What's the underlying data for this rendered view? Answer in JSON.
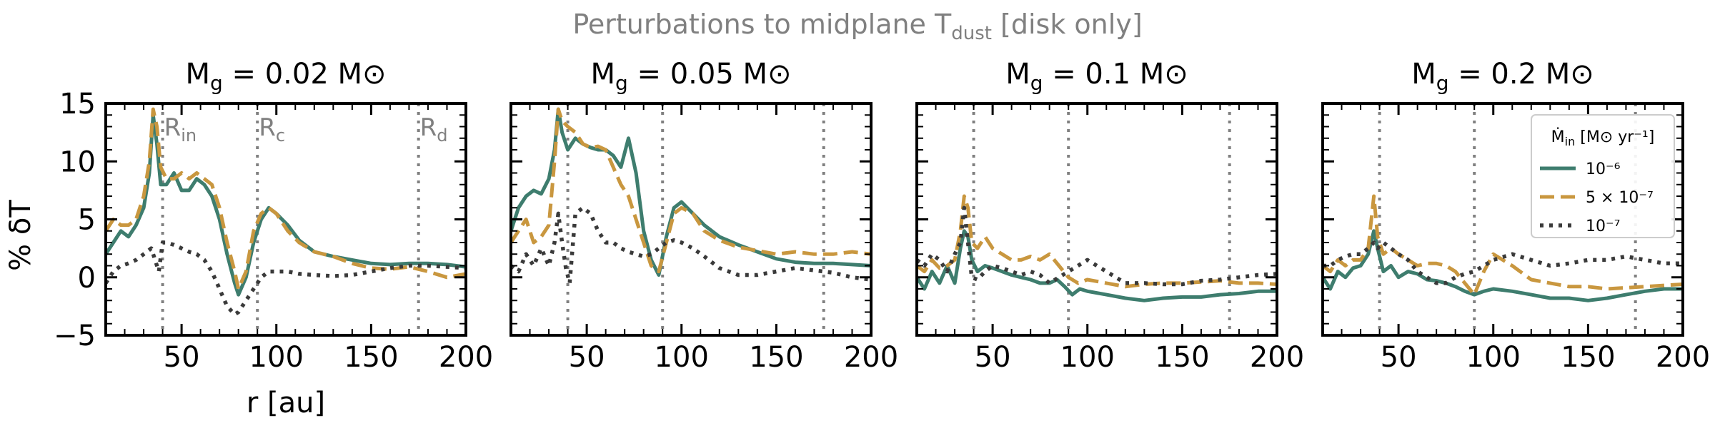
{
  "suptitle_main": "Perturbations to midplane T",
  "suptitle_sub": "dust",
  "suptitle_tail": " [disk only]",
  "ylabel": "% δT",
  "xlabel": "r [au]",
  "colors": {
    "teal": "#3e7d6e",
    "gold": "#c9973f",
    "dark": "#3a3a3a",
    "grey": "#808080"
  },
  "reference_lines": {
    "values": [
      40,
      90,
      175
    ],
    "labels": [
      {
        "main": "R",
        "sub": "in"
      },
      {
        "main": "R",
        "sub": "c"
      },
      {
        "main": "R",
        "sub": "d"
      }
    ]
  },
  "legend": {
    "title_main": "Ṁ",
    "title_sub": "in",
    "title_tail": " [M⊙ yr⁻¹]",
    "placement": "upper-right of last panel",
    "entries": [
      "10⁻⁶",
      "5 × 10⁻⁷",
      "10⁻⁷"
    ]
  },
  "chart_data": [
    {
      "type": "line",
      "title": "M_g = 0.02 M⊙",
      "title_main": "M",
      "title_sub": "g",
      "title_tail": " = 0.02 M⊙",
      "xlim": [
        10,
        200
      ],
      "ylim": [
        -5,
        15
      ],
      "xticks": [
        50,
        100,
        150,
        200
      ],
      "yticks": [
        -5,
        0,
        5,
        10,
        15
      ],
      "series": [
        {
          "style": "solid",
          "color": "teal",
          "x": [
            10,
            14,
            18,
            22,
            26,
            30,
            33,
            35,
            37,
            39,
            42,
            46,
            50,
            54,
            58,
            62,
            66,
            70,
            74,
            78,
            80,
            84,
            88,
            92,
            96,
            100,
            106,
            112,
            120,
            130,
            140,
            150,
            160,
            170,
            180,
            190,
            200
          ],
          "y": [
            2,
            3,
            4,
            3.5,
            4.5,
            6,
            9,
            14,
            11.5,
            8,
            8,
            9,
            7.5,
            7.5,
            8.5,
            8,
            7,
            5,
            2,
            -0.5,
            -1.5,
            0,
            3,
            5,
            6,
            5.5,
            4.5,
            3.2,
            2.2,
            1.8,
            1.5,
            1.2,
            1.1,
            1.2,
            1.2,
            1.1,
            0.9
          ]
        },
        {
          "style": "dashed",
          "color": "gold",
          "x": [
            10,
            14,
            18,
            22,
            26,
            30,
            33,
            35,
            37,
            39,
            42,
            46,
            50,
            54,
            58,
            62,
            66,
            70,
            74,
            78,
            80,
            84,
            88,
            92,
            96,
            100,
            106,
            112,
            120,
            130,
            140,
            150,
            160,
            170,
            180,
            190,
            200
          ],
          "y": [
            4,
            5,
            4.5,
            4.5,
            5,
            7,
            10,
            14.5,
            13,
            9.5,
            8.5,
            8.5,
            9,
            8.5,
            9,
            8.5,
            8,
            6,
            3,
            0.5,
            -1,
            0.5,
            4,
            5.5,
            6,
            5.5,
            4,
            3,
            2.2,
            1.8,
            1.2,
            0.8,
            0.7,
            0.9,
            0.5,
            0,
            0.3
          ]
        },
        {
          "style": "dotted",
          "color": "dark",
          "x": [
            10,
            14,
            18,
            22,
            26,
            30,
            34,
            36,
            38,
            40,
            42,
            46,
            50,
            54,
            58,
            62,
            66,
            70,
            74,
            78,
            80,
            84,
            88,
            92,
            96,
            100,
            106,
            112,
            120,
            130,
            140,
            150,
            160,
            170,
            180,
            190,
            200
          ],
          "y": [
            -0.5,
            0.5,
            1,
            1.2,
            1.5,
            2,
            2.5,
            1.5,
            0.5,
            3,
            3,
            2.8,
            2.5,
            2.2,
            2,
            1.5,
            0.5,
            -1,
            -2.5,
            -3.2,
            -3,
            -2,
            -1,
            0,
            0.5,
            0.5,
            0.5,
            0.3,
            0.2,
            0.1,
            0.2,
            0.5,
            0.8,
            1,
            1,
            0.9,
            0.8
          ]
        }
      ]
    },
    {
      "type": "line",
      "title": "M_g = 0.05 M⊙",
      "title_main": "M",
      "title_sub": "g",
      "title_tail": " = 0.05 M⊙",
      "xlim": [
        10,
        200
      ],
      "ylim": [
        -5,
        15
      ],
      "xticks": [
        50,
        100,
        150,
        200
      ],
      "yticks": [
        -5,
        0,
        5,
        10,
        15
      ],
      "series": [
        {
          "style": "solid",
          "color": "teal",
          "x": [
            10,
            14,
            18,
            22,
            26,
            30,
            33,
            35,
            37,
            40,
            44,
            48,
            52,
            56,
            60,
            64,
            68,
            72,
            76,
            80,
            84,
            88,
            92,
            96,
            100,
            106,
            112,
            120,
            130,
            140,
            150,
            160,
            170,
            180,
            190,
            200
          ],
          "y": [
            4,
            6,
            7,
            7.5,
            7.2,
            8.5,
            11,
            14.5,
            12.5,
            11,
            12,
            11.5,
            11.2,
            11,
            11,
            10.5,
            9.5,
            12,
            9,
            4,
            1.5,
            0.2,
            3.5,
            6,
            6.5,
            5.5,
            4.5,
            3.5,
            2.8,
            2.2,
            1.6,
            1.3,
            1.2,
            1.2,
            1.1,
            1
          ]
        },
        {
          "style": "dashed",
          "color": "gold",
          "x": [
            10,
            14,
            18,
            22,
            26,
            30,
            33,
            35,
            37,
            40,
            44,
            48,
            52,
            56,
            60,
            64,
            68,
            72,
            76,
            80,
            84,
            88,
            92,
            96,
            100,
            106,
            112,
            120,
            130,
            140,
            150,
            160,
            170,
            180,
            190,
            200
          ],
          "y": [
            3,
            4,
            5,
            3,
            3.5,
            4.5,
            10,
            14.5,
            13.5,
            13,
            12.5,
            11.5,
            11.2,
            11.3,
            11,
            9.5,
            8,
            7,
            5,
            3,
            1,
            0.5,
            3,
            5.5,
            6,
            5.5,
            4,
            3.2,
            2.6,
            2.3,
            2,
            2.2,
            2,
            2,
            2.2,
            2
          ]
        },
        {
          "style": "dotted",
          "color": "dark",
          "x": [
            10,
            14,
            18,
            22,
            26,
            30,
            33,
            35,
            37,
            39,
            41,
            44,
            48,
            52,
            56,
            60,
            64,
            68,
            72,
            76,
            80,
            84,
            88,
            92,
            96,
            100,
            106,
            112,
            120,
            130,
            140,
            150,
            160,
            170,
            180,
            190,
            200
          ],
          "y": [
            1,
            0.5,
            2,
            1,
            2.5,
            1,
            3,
            5.5,
            3,
            0.8,
            -0.5,
            5.5,
            6,
            5.5,
            4,
            3,
            3,
            2.5,
            2.2,
            2,
            1.8,
            2,
            2.5,
            3,
            3.2,
            3,
            2.5,
            1.8,
            0.8,
            0.2,
            0.2,
            0.5,
            0.8,
            0.6,
            0.4,
            0,
            -0.2
          ]
        }
      ]
    },
    {
      "type": "line",
      "title": "M_g = 0.1 M⊙",
      "title_main": "M",
      "title_sub": "g",
      "title_tail": " = 0.1 M⊙",
      "xlim": [
        10,
        200
      ],
      "ylim": [
        -5,
        15
      ],
      "xticks": [
        50,
        100,
        150,
        200
      ],
      "yticks": [
        -5,
        0,
        5,
        10,
        15
      ],
      "series": [
        {
          "style": "solid",
          "color": "teal",
          "x": [
            10,
            14,
            18,
            22,
            26,
            30,
            33,
            35,
            37,
            39,
            42,
            46,
            50,
            55,
            60,
            65,
            70,
            75,
            80,
            84,
            88,
            92,
            96,
            100,
            110,
            120,
            130,
            140,
            150,
            160,
            170,
            180,
            190,
            200
          ],
          "y": [
            0,
            -1,
            0.5,
            -0.5,
            1,
            -0.5,
            2.5,
            4,
            3.5,
            1.5,
            0.5,
            1,
            0.8,
            0.5,
            0.2,
            0,
            -0.2,
            -0.5,
            -0.5,
            -0.2,
            -0.8,
            -1.5,
            -1,
            -1.2,
            -1.5,
            -1.8,
            -2,
            -1.8,
            -1.7,
            -1.7,
            -1.5,
            -1.4,
            -1.2,
            -1.2
          ]
        },
        {
          "style": "dashed",
          "color": "gold",
          "x": [
            10,
            14,
            18,
            22,
            26,
            30,
            33,
            35,
            37,
            39,
            42,
            46,
            50,
            55,
            60,
            65,
            70,
            75,
            80,
            85,
            90,
            95,
            100,
            110,
            120,
            130,
            140,
            150,
            160,
            170,
            180,
            190,
            200
          ],
          "y": [
            1,
            0.5,
            1.5,
            0.8,
            1,
            1.5,
            4,
            7,
            6,
            3,
            2.5,
            3.5,
            2.5,
            2,
            1.5,
            1.5,
            1.8,
            1.5,
            2,
            1,
            0,
            -0.5,
            -0.2,
            -0.5,
            -0.8,
            -0.6,
            -0.5,
            -0.5,
            -0.4,
            -0.3,
            -0.5,
            -0.5,
            -0.6
          ]
        },
        {
          "style": "dotted",
          "color": "dark",
          "x": [
            10,
            14,
            18,
            22,
            26,
            30,
            33,
            35,
            37,
            39,
            42,
            46,
            50,
            55,
            60,
            65,
            70,
            75,
            80,
            85,
            90,
            95,
            100,
            110,
            120,
            130,
            140,
            150,
            160,
            170,
            180,
            190,
            200
          ],
          "y": [
            1.5,
            1,
            2,
            1.5,
            0.5,
            2,
            3,
            6,
            3,
            0,
            -0.2,
            0.5,
            1,
            0.8,
            0.5,
            0.2,
            0.5,
            0.2,
            -0.5,
            0,
            0.5,
            1,
            1.5,
            0.5,
            -0.5,
            -0.5,
            -0.6,
            -0.6,
            -0.3,
            -0.2,
            0,
            0.2,
            0.3
          ]
        }
      ]
    },
    {
      "type": "line",
      "title": "M_g = 0.2 M⊙",
      "title_main": "M",
      "title_sub": "g",
      "title_tail": " = 0.2 M⊙",
      "xlim": [
        10,
        200
      ],
      "ylim": [
        -5,
        15
      ],
      "xticks": [
        50,
        100,
        150,
        200
      ],
      "yticks": [
        -5,
        0,
        5,
        10,
        15
      ],
      "series": [
        {
          "style": "solid",
          "color": "teal",
          "x": [
            10,
            14,
            18,
            22,
            26,
            30,
            34,
            37,
            39,
            42,
            46,
            50,
            55,
            60,
            65,
            70,
            75,
            80,
            85,
            90,
            95,
            100,
            110,
            120,
            130,
            140,
            150,
            160,
            170,
            180,
            190,
            200
          ],
          "y": [
            0,
            -1,
            0.5,
            0,
            0.8,
            1,
            2,
            4,
            2.5,
            0.5,
            1,
            0,
            0.5,
            0.3,
            -0.2,
            -0.3,
            -0.5,
            -0.8,
            -1.2,
            -1.5,
            -1.2,
            -1,
            -1.2,
            -1.5,
            -1.8,
            -1.8,
            -2,
            -1.8,
            -1.5,
            -1.2,
            -1,
            -1
          ]
        },
        {
          "style": "dashed",
          "color": "gold",
          "x": [
            10,
            14,
            18,
            22,
            26,
            30,
            34,
            37,
            39,
            42,
            46,
            50,
            55,
            60,
            65,
            70,
            75,
            80,
            85,
            90,
            95,
            100,
            110,
            120,
            130,
            140,
            150,
            160,
            170,
            180,
            190,
            200
          ],
          "y": [
            1,
            0.5,
            1.5,
            1,
            1.5,
            1.5,
            2.5,
            7,
            3.5,
            2,
            2.5,
            2,
            1.5,
            1,
            1.2,
            1.2,
            1,
            0.5,
            -0.5,
            -1.5,
            0.5,
            2,
            1,
            -0.2,
            -0.5,
            -0.8,
            -0.8,
            -1,
            -0.9,
            -0.8,
            -0.7,
            -0.6
          ]
        },
        {
          "style": "dotted",
          "color": "dark",
          "x": [
            10,
            14,
            18,
            22,
            26,
            30,
            34,
            37,
            39,
            42,
            46,
            50,
            55,
            60,
            65,
            70,
            75,
            80,
            85,
            90,
            95,
            100,
            110,
            120,
            130,
            140,
            150,
            160,
            170,
            180,
            190,
            200
          ],
          "y": [
            1,
            1,
            1.5,
            1.8,
            2,
            2,
            2.5,
            3,
            2.5,
            3,
            2.5,
            2,
            1.5,
            0.5,
            0,
            -0.5,
            -0.5,
            0,
            0.3,
            0.5,
            1,
            1.5,
            2,
            1.5,
            1,
            1.2,
            1.5,
            1.5,
            1.8,
            1.5,
            1.2,
            1.2
          ]
        }
      ]
    }
  ]
}
